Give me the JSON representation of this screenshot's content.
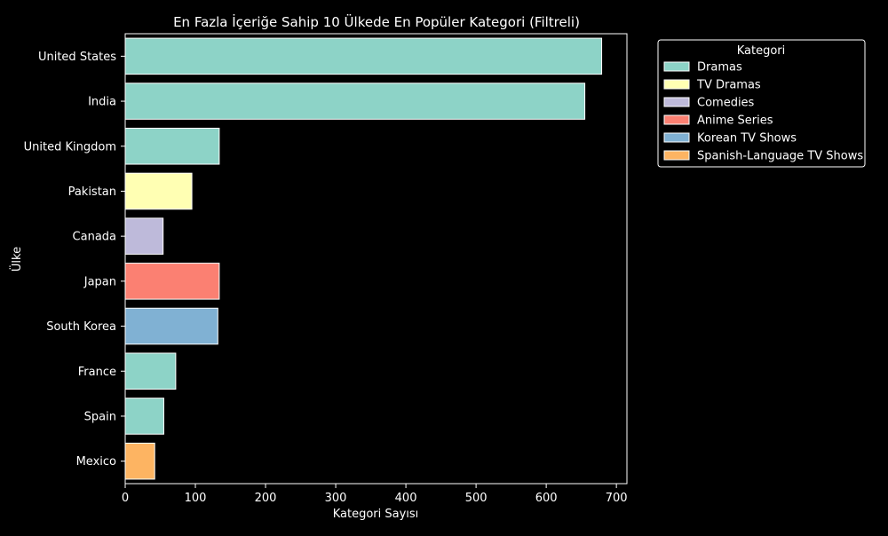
{
  "chart_data": {
    "type": "bar",
    "orientation": "horizontal",
    "title": "En Fazla İçeriğe Sahip 10 Ülkede En Popüler Kategori (Filtreli)",
    "xlabel": "Kategori Sayısı",
    "ylabel": "Ülke",
    "xlim": [
      0,
      715
    ],
    "xticks": [
      0,
      100,
      200,
      300,
      400,
      500,
      600,
      700
    ],
    "grid": false,
    "legend": {
      "title": "Kategori",
      "placement": "outside-top-right",
      "entries": [
        {
          "label": "Dramas",
          "color": "#8dd3c7"
        },
        {
          "label": "TV Dramas",
          "color": "#ffffb3"
        },
        {
          "label": "Comedies",
          "color": "#bebada"
        },
        {
          "label": "Anime Series",
          "color": "#fb8072"
        },
        {
          "label": "Korean TV Shows",
          "color": "#80b1d3"
        },
        {
          "label": "Spanish-Language TV Shows",
          "color": "#fdb462"
        }
      ]
    },
    "categories": [
      "United States",
      "India",
      "United Kingdom",
      "Pakistan",
      "Canada",
      "Japan",
      "South Korea",
      "France",
      "Spain",
      "Mexico"
    ],
    "values": [
      679,
      655,
      134,
      95,
      54,
      134,
      132,
      72,
      55,
      42
    ],
    "bar_categories": [
      "Dramas",
      "Dramas",
      "Dramas",
      "TV Dramas",
      "Comedies",
      "Anime Series",
      "Korean TV Shows",
      "Dramas",
      "Dramas",
      "Spanish-Language TV Shows"
    ]
  },
  "colors": {
    "background": "#000000",
    "text": "#ffffff",
    "bar_edge": "#ffffff"
  }
}
